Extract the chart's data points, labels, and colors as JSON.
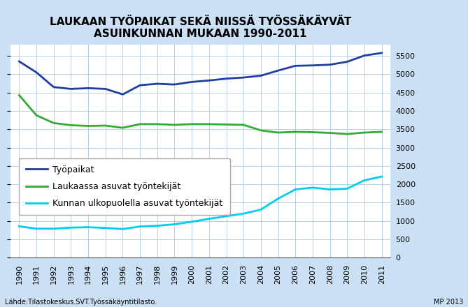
{
  "title": "LAUKAAN TYÖPAIKAT SEKÄ NIISSÄ TYÖSSÄKÄYVÄT\nASUINKUNNAN MUKAAN 1990-2011",
  "years": [
    1990,
    1991,
    1992,
    1993,
    1994,
    1995,
    1996,
    1997,
    1998,
    1999,
    2000,
    2001,
    2002,
    2003,
    2004,
    2005,
    2006,
    2007,
    2008,
    2009,
    2010,
    2011
  ],
  "tyopaikat": [
    5350,
    5050,
    4650,
    4600,
    4620,
    4600,
    4450,
    4700,
    4740,
    4720,
    4790,
    4830,
    4880,
    4910,
    4960,
    5100,
    5230,
    5240,
    5260,
    5340,
    5510,
    5580
  ],
  "laukaassa": [
    4430,
    3880,
    3670,
    3610,
    3590,
    3600,
    3540,
    3640,
    3640,
    3620,
    3640,
    3640,
    3630,
    3620,
    3470,
    3410,
    3430,
    3420,
    3400,
    3370,
    3410,
    3430
  ],
  "ulkopuolella": [
    855,
    790,
    790,
    820,
    830,
    810,
    780,
    850,
    870,
    910,
    980,
    1060,
    1130,
    1200,
    1310,
    1610,
    1860,
    1910,
    1860,
    1880,
    2110,
    2210
  ],
  "color_tyopaikat": "#1f3f9f",
  "color_laukaassa": "#33aa33",
  "color_ulkopuolella": "#00ccee",
  "background_outer": "#cce0f5",
  "background_inner": "#ffffff",
  "grid_color": "#b0c8e0",
  "ylim": [
    0,
    5800
  ],
  "yticks": [
    0,
    500,
    1000,
    1500,
    2000,
    2500,
    3000,
    3500,
    4000,
    4500,
    5000,
    5500
  ],
  "legend_labels": [
    "Työpaikat",
    "Laukaassa asuvat työntekijät",
    "Kunnan ulkopuolella asuvat työntekijät"
  ],
  "source": "Lähde:Tilastokeskus.SVT.Työssäkäyntitilasto.",
  "credit": "MP 2013",
  "title_fontsize": 11,
  "tick_fontsize": 8,
  "legend_fontsize": 9,
  "linewidth": 2.0
}
